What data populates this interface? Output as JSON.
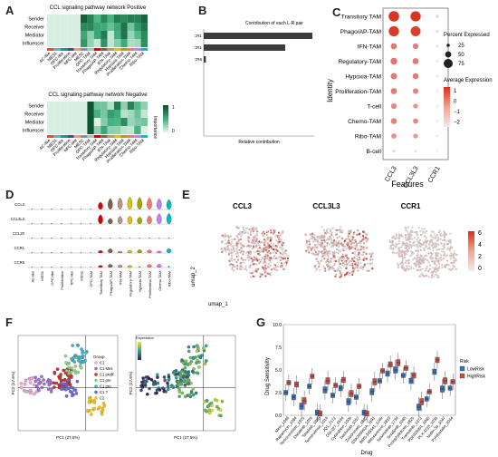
{
  "panels": {
    "a": {
      "label": "A",
      "positive_title": "CCL signaling pathway network Positive",
      "negative_title": "CCL signaling pathway network Negative",
      "roles": [
        "Sender",
        "Receiver",
        "Mediator",
        "Influencer"
      ],
      "cell_types": [
        "AC-like",
        "MES1",
        "OPC-like",
        "Proliferation",
        "NPC-like",
        "MES2",
        "OPC-TAM",
        "Transitory TAM",
        "Phago/AP-TAM",
        "IFN-TAM",
        "Regulatory-TAM",
        "Hypoxia-TAM",
        "Proliferation-TAM",
        "Chemo-TAM",
        "Ribo-TAM"
      ],
      "importance_label": "Importance",
      "legend_max": "1",
      "legend_min": "0",
      "colors": {
        "high": "#0b4a2c",
        "mid": "#3fae7a",
        "low": "#e8f6ee"
      }
    },
    "b": {
      "label": "B",
      "title": "Contribution of each L-R pair",
      "xlabel": "Relative contribution",
      "colors": {
        "bar": "#3c3c3c"
      }
    },
    "c": {
      "label": "C",
      "ylabel": "Identity",
      "xlabel": "Features",
      "features": [
        "CCL3",
        "CCL3L3",
        "CCR1"
      ],
      "size_legend_title": "Percent Expressed",
      "size_legend": [
        "25",
        "50",
        "75"
      ],
      "color_legend_title": "Average Expression",
      "color_legend": [
        "1",
        "0",
        "−1",
        "−2"
      ],
      "colors": {
        "high": "#d7301f",
        "low": "#f2e6e6"
      }
    },
    "d": {
      "label": "D",
      "genes": [
        "CCL3",
        "CCL3L3",
        "CCL20",
        "CCR1",
        "CCR5"
      ],
      "cell_types": [
        "AC-like",
        "MES1",
        "OPC-like",
        "Proliferation",
        "NPC-like",
        "MES2",
        "OPC-TAM",
        "Transitory TAM",
        "Phago/AP-TAM",
        "IFN-TAM",
        "Regulatory-TAM",
        "Hypoxia-TAM",
        "Proliferation-TAM",
        "Chemo-TAM",
        "Ribo-TAM"
      ]
    },
    "e": {
      "label": "E",
      "genes": [
        "CCL3",
        "CCL3L3",
        "CCR1"
      ],
      "ylabel": "umap_2",
      "xlabel": "umap_1",
      "legend": [
        "6",
        "4",
        "2",
        "0"
      ],
      "colors": {
        "high": "#c0392b",
        "low": "#d6d6d6"
      }
    },
    "f": {
      "label": "F",
      "legend_title": "Group",
      "groups": [
        "C1",
        "C1 Mes",
        "C1 prolif",
        "C1 pre",
        "C1 pro",
        "C1 ?",
        "C2"
      ],
      "group_colors": [
        "#e6a8d7",
        "#9b6fd1",
        "#c7332f",
        "#8bd48a",
        "#3fb0c9",
        "#6a6adb",
        "#f0c21c"
      ],
      "xlabel": "PC1 (27.5%)",
      "ylabel": "PC2 (17.6%)",
      "expr_legend_title": "Expression"
    },
    "g": {
      "label": "G",
      "ylabel": "Drug Sensitivity",
      "xlabel": "Drug",
      "legend_title": "Risk",
      "legend": [
        "LowRisk",
        "HighRisk"
      ],
      "colors": {
        "low": "#3e6fb0",
        "high": "#c0504d"
      },
      "y_ticks": [
        "10.0",
        "7.5",
        "5.0",
        "2.5",
        "0.0"
      ]
    }
  },
  "chart_data": [
    {
      "type": "bar",
      "title": "Contribution of each L-R pair",
      "xlabel": "Relative contribution",
      "categories": [
        "CCL3 - CCR1",
        "CCL3L3 - CCR1",
        "CCL20 - CCR6"
      ],
      "values": [
        1.0,
        0.75,
        0.02
      ],
      "xlim": [
        0,
        1
      ]
    },
    {
      "type": "scatter",
      "title": "",
      "xlabel": "Features",
      "ylabel": "Identity",
      "categories": [
        "Transitory TAM",
        "Phago/AP-TAM",
        "IFN-TAM",
        "Regulatory-TAM",
        "Hypoxia-TAM",
        "Proliferation-TAM",
        "T-cell",
        "Chemo-TAM",
        "Ribo-TAM",
        "B-cell"
      ],
      "series": [
        {
          "name": "CCL3",
          "pct": [
            80,
            78,
            40,
            45,
            42,
            40,
            35,
            38,
            32,
            8
          ],
          "avg": [
            1.4,
            1.3,
            0.1,
            0.2,
            0.1,
            0.0,
            -0.2,
            -0.1,
            -0.4,
            -1.5
          ]
        },
        {
          "name": "CCL3L3",
          "pct": [
            78,
            75,
            35,
            40,
            38,
            35,
            28,
            32,
            28,
            5
          ],
          "avg": [
            1.4,
            1.2,
            0.0,
            0.1,
            0.0,
            -0.1,
            -0.4,
            -0.2,
            -0.5,
            -1.6
          ]
        },
        {
          "name": "CCR1",
          "pct": [
            12,
            10,
            6,
            6,
            5,
            5,
            4,
            5,
            4,
            2
          ],
          "avg": [
            -1.6,
            -1.7,
            -1.8,
            -1.8,
            -1.8,
            -1.9,
            -1.9,
            -1.9,
            -1.9,
            -2.0
          ]
        }
      ]
    },
    {
      "type": "bar",
      "title": "",
      "xlabel": "Drug",
      "ylabel": "Drug Sensitivity",
      "ylim": [
        0,
        10
      ],
      "categories": [
        "Mirin_1048",
        "Rapamycin_1084",
        "Temozolomide_1375",
        "Dasatinib_1079",
        "Taselisib_1899",
        "Temsirolimus_1016",
        "JQ1_2172",
        "OSI-027_1594",
        "Cytarabine_1006",
        "Dactolisib_1057",
        "Zoledronate_1802",
        "GSK269962A_1192",
        "BMS-345541_1249",
        "Mitoxantrone_1810",
        "Selumetinib_1736",
        "Sorafenib_1085",
        "Podophyllotoxin_1825",
        "Trametinib_1372",
        "PD0325901_1060",
        "PLX-4720_1036",
        "Nutlin-3a_1047",
        "Pyridostatin_2044"
      ],
      "series": [
        {
          "name": "LowRisk",
          "values": [
            2.5,
            2.0,
            1.0,
            3.2,
            0.3,
            2.8,
            2.2,
            3.0,
            1.5,
            2.0,
            0.3,
            2.6,
            3.8,
            4.6,
            5.0,
            4.4,
            3.8,
            0.9,
            1.8,
            4.8,
            2.9,
            3.0
          ]
        },
        {
          "name": "HighRisk",
          "values": [
            3.6,
            3.4,
            1.6,
            4.3,
            0.2,
            3.8,
            3.3,
            3.9,
            2.4,
            3.2,
            0.2,
            3.7,
            4.9,
            5.6,
            5.8,
            5.2,
            4.4,
            1.5,
            2.6,
            6.1,
            3.8,
            3.7
          ]
        }
      ]
    }
  ]
}
